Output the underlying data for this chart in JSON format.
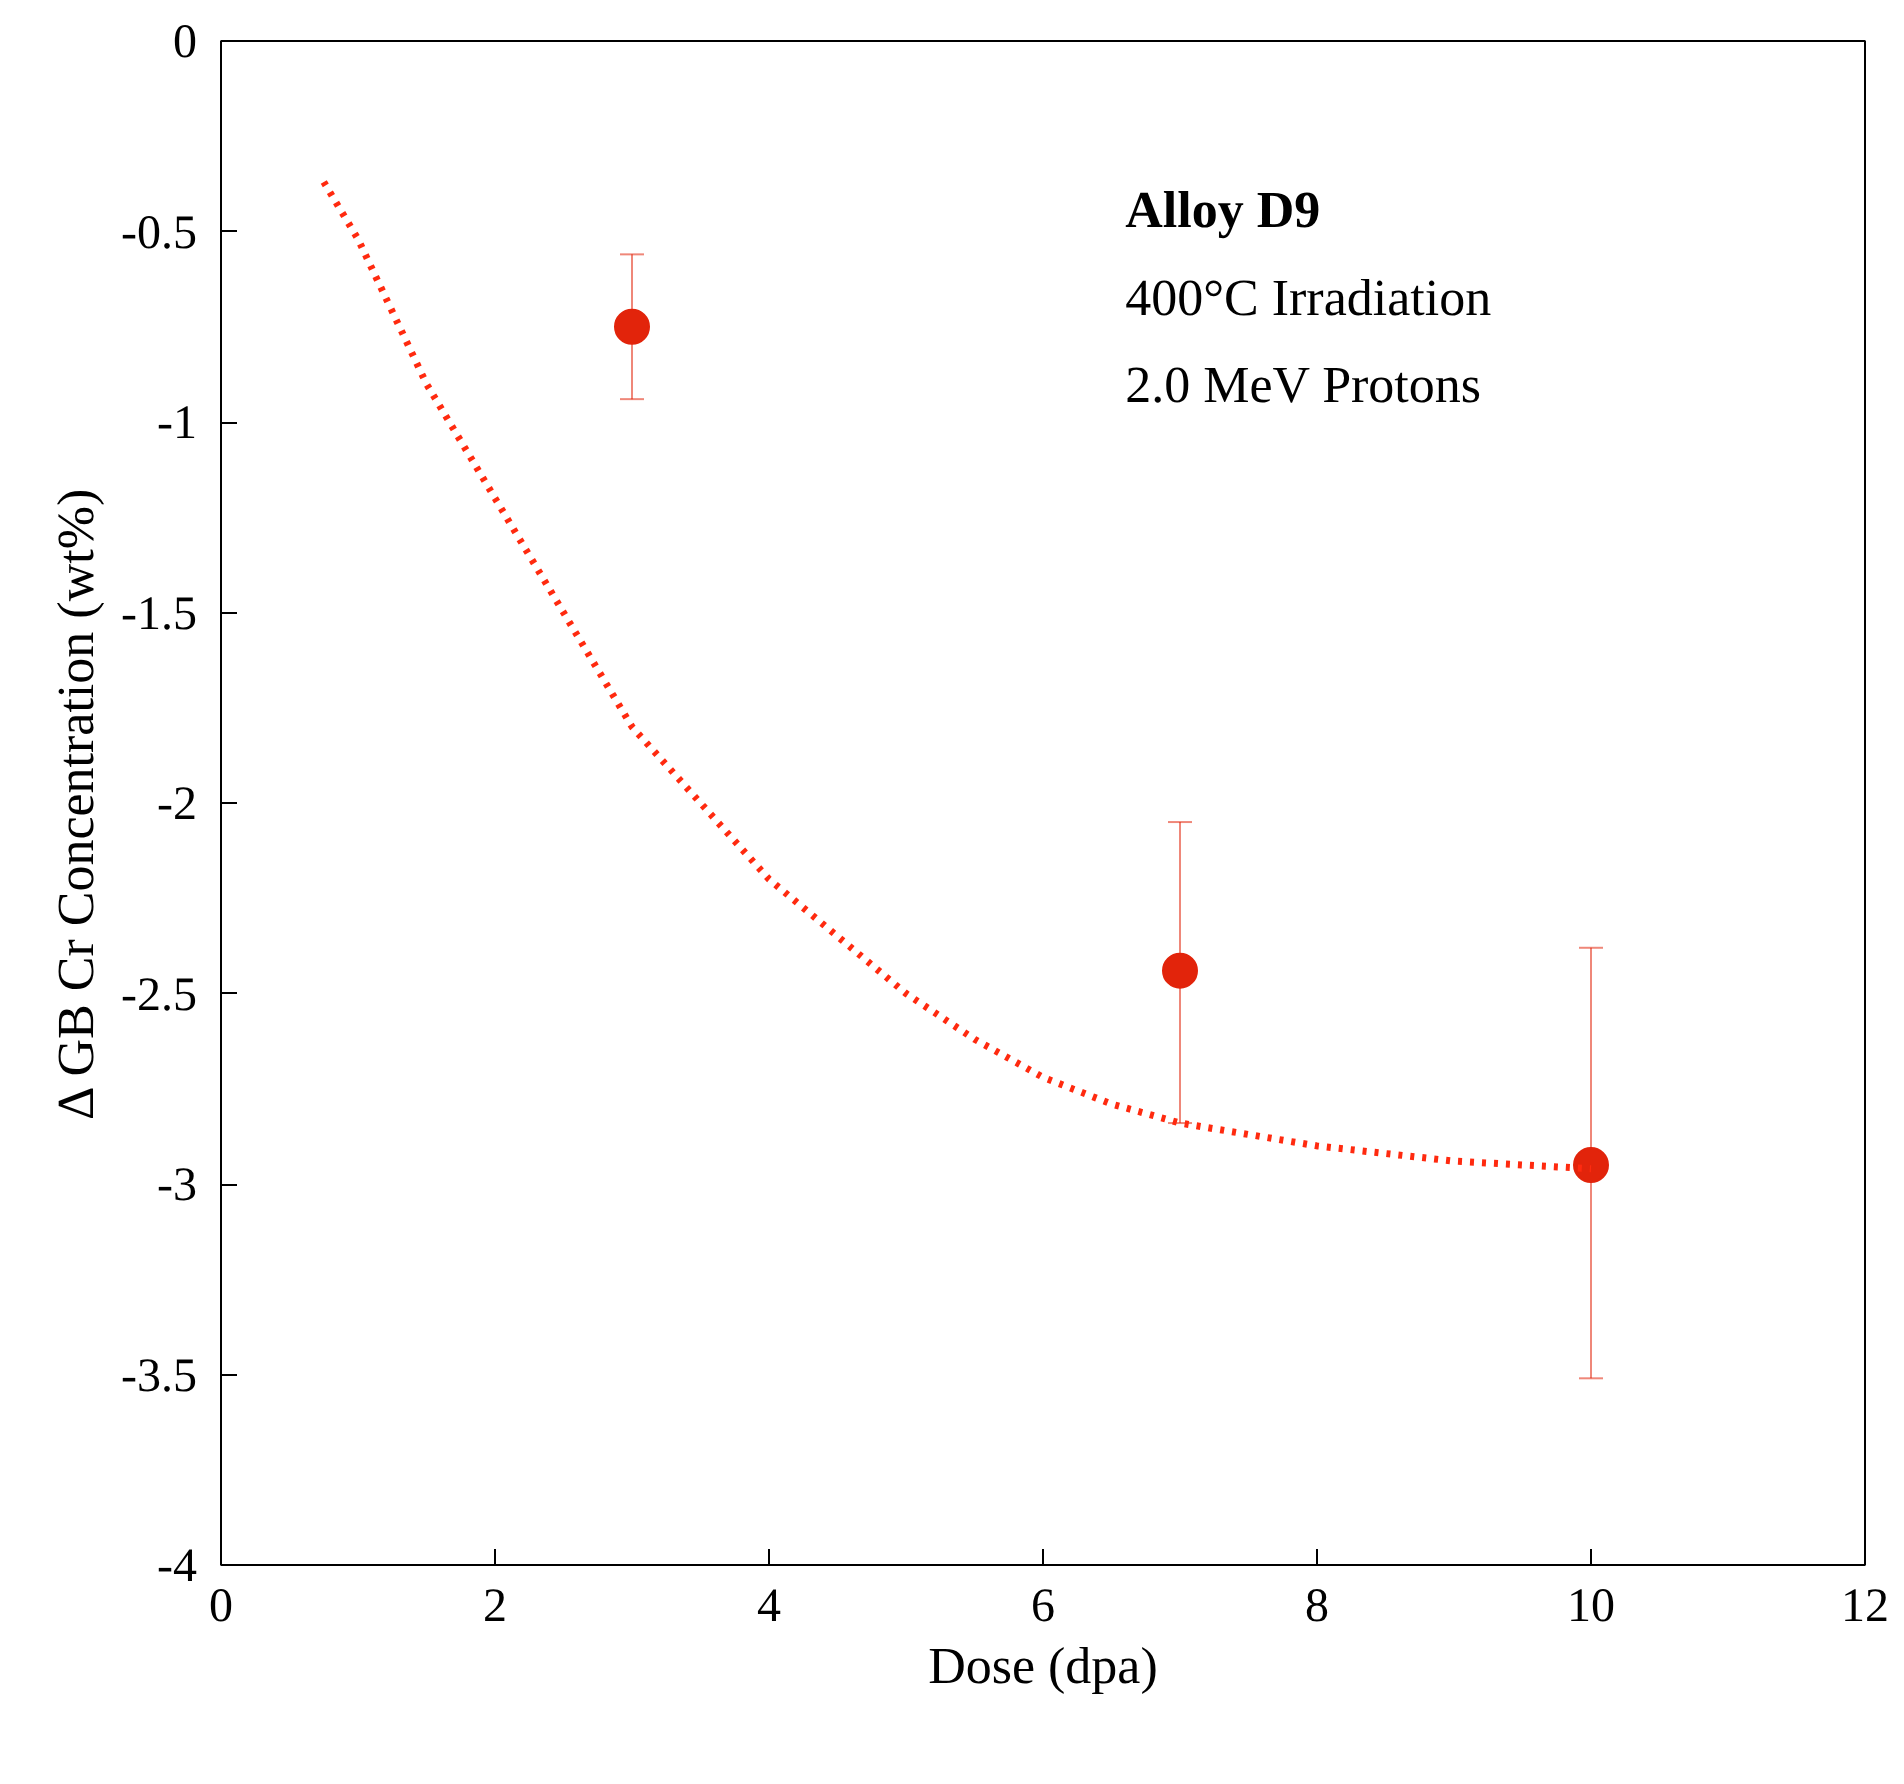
{
  "chart_data": {
    "type": "scatter",
    "xlabel": "Dose (dpa)",
    "ylabel": "Δ GB Cr Concentration (wt%)",
    "annotations": [
      "Alloy D9",
      "400°C Irradiation",
      "2.0 MeV Protons"
    ],
    "xlim": [
      0,
      12
    ],
    "ylim": [
      -4,
      0
    ],
    "xticks": [
      0,
      2,
      4,
      6,
      8,
      10,
      12
    ],
    "yticks": [
      -4,
      -3.5,
      -3,
      -2.5,
      -2,
      -1.5,
      -1,
      -0.5,
      0
    ],
    "grid": false,
    "marker": "circle",
    "series": [
      {
        "color": "#e2240b",
        "x": [
          3,
          7,
          10
        ],
        "values": [
          -0.75,
          -2.44,
          -2.95
        ],
        "errors": [
          [
            -0.94,
            -0.56
          ],
          [
            -2.84,
            -2.05
          ],
          [
            -3.51,
            -2.38
          ]
        ]
      },
      {
        "type": "line",
        "color": "#ff2a0f",
        "line_style": "dotted",
        "marker": "none",
        "x": [
          0.75,
          1,
          1.5,
          2,
          2.5,
          3,
          3.5,
          4,
          4.5,
          5,
          5.5,
          6,
          6.5,
          7,
          8,
          9,
          10
        ],
        "values": [
          -0.37,
          -0.52,
          -0.9,
          -1.2,
          -1.5,
          -1.8,
          -2.0,
          -2.2,
          -2.35,
          -2.5,
          -2.62,
          -2.72,
          -2.79,
          -2.84,
          -2.9,
          -2.94,
          -2.96
        ]
      }
    ]
  }
}
